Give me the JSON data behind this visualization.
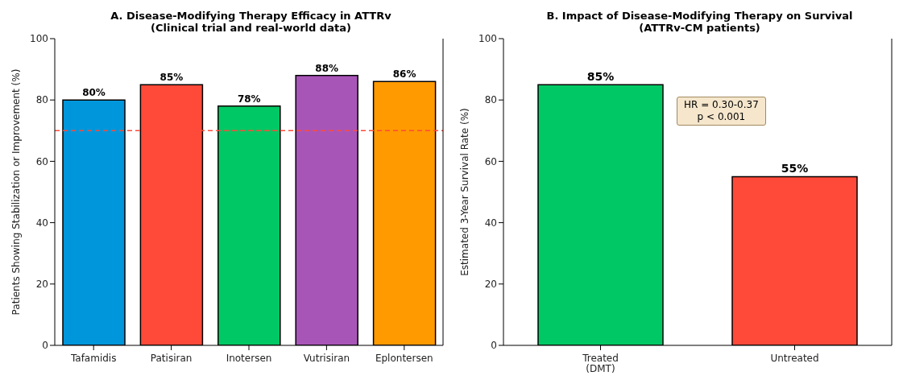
{
  "chart_data": [
    {
      "type": "bar",
      "title": "A. Disease-Modifying Therapy Efficacy in ATTRv\n(Clinical trial and real-world data)",
      "ylabel": "Patients Showing Stabilization or Improvement (%)",
      "categories": [
        "Tafamidis",
        "Patisiran",
        "Inotersen",
        "Vutrisiran",
        "Eplontersen"
      ],
      "values": [
        80,
        85,
        78,
        88,
        86
      ],
      "colors": [
        "#0096db",
        "#ff4a3a",
        "#00c864",
        "#a855b8",
        "#ff9a00"
      ],
      "value_labels": [
        "80%",
        "85%",
        "78%",
        "88%",
        "86%"
      ],
      "ylim": [
        0,
        100
      ],
      "yticks": [
        0,
        20,
        40,
        60,
        80,
        100
      ],
      "grid": false,
      "legend": false,
      "ref_lines": [
        {
          "axis": "y",
          "value": 70,
          "color": "#ff4a3a",
          "line_style": "dashed"
        }
      ]
    },
    {
      "type": "bar",
      "title": "B. Impact of Disease-Modifying Therapy on Survival\n(ATTRv-CM patients)",
      "ylabel": "Estimated 3-Year Survival Rate (%)",
      "categories": [
        "Treated\n(DMT)",
        "Untreated"
      ],
      "values": [
        85,
        55
      ],
      "colors": [
        "#00c864",
        "#ff4a3a"
      ],
      "value_labels": [
        "85%",
        "55%"
      ],
      "ylim": [
        0,
        100
      ],
      "yticks": [
        0,
        20,
        40,
        60,
        80,
        100
      ],
      "grid": false,
      "legend": false,
      "annotations": [
        "HR = 0.30-0.37\np < 0.001"
      ]
    }
  ]
}
